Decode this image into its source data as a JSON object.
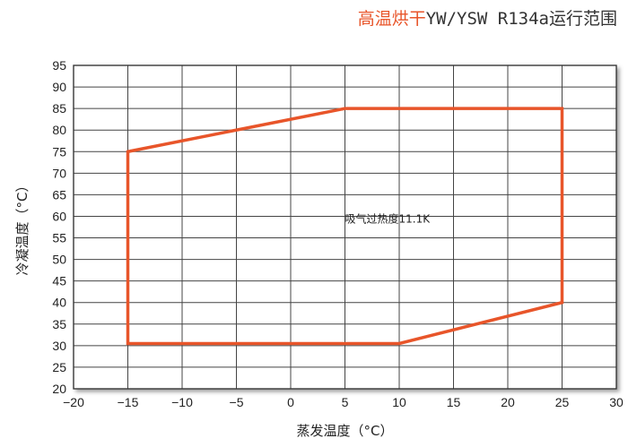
{
  "title": {
    "accent": "高温烘干",
    "rest": "YW/YSW R134a运行范围",
    "accent_color": "#e8552a"
  },
  "chart_data": {
    "type": "line",
    "title": "高温烘干YW/YSW R134a运行范围",
    "xlabel": "蒸发温度（°C）",
    "ylabel": "冷凝温度（°C）",
    "xlim": [
      -20,
      30
    ],
    "ylim": [
      20,
      95
    ],
    "x_ticks": [
      -20,
      -15,
      -10,
      -5,
      0,
      5,
      10,
      15,
      20,
      25,
      30
    ],
    "x_tick_labels": [
      "−20",
      "−15",
      "−10",
      "−5",
      "0",
      "5",
      "10",
      "15",
      "20",
      "25",
      "30"
    ],
    "y_ticks": [
      20,
      25,
      30,
      35,
      40,
      45,
      50,
      55,
      60,
      65,
      70,
      75,
      80,
      85,
      90,
      95
    ],
    "grid": true,
    "series": [
      {
        "color": "#e8552a",
        "closed": true,
        "points": [
          [
            -15,
            75
          ],
          [
            5,
            85
          ],
          [
            25,
            85
          ],
          [
            25,
            40
          ],
          [
            10,
            30.5
          ],
          [
            -15,
            30.5
          ]
        ]
      }
    ],
    "annotations": [
      {
        "text": "吸气过热度11.1K",
        "x": 5,
        "y": 58.5
      }
    ]
  }
}
